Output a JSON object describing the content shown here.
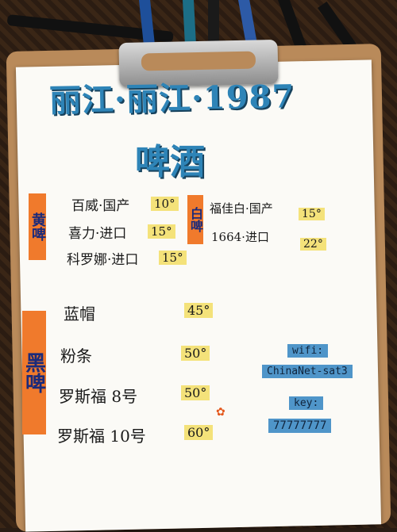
{
  "title": {
    "line1": "丽江·丽江·1987",
    "line2": "啤酒"
  },
  "sections": {
    "yellow_beer_left": {
      "tag": "黄啤",
      "items": [
        {
          "name": "百威·国产",
          "price": "10°"
        },
        {
          "name": "喜力·进口",
          "price": "15°"
        },
        {
          "name": "科罗娜·进口",
          "price": "15°"
        }
      ]
    },
    "white_beer": {
      "tag": "白啤",
      "items": [
        {
          "name": "福佳白·国产",
          "price": "15°"
        },
        {
          "name": "1664·进口",
          "price": "22°"
        }
      ]
    },
    "black_beer": {
      "tag": "黑啤",
      "items": [
        {
          "name": "蓝帽",
          "price": "45°"
        },
        {
          "name": "粉条",
          "price": "50°"
        },
        {
          "name": "罗斯福 8号",
          "price": "50°"
        },
        {
          "name": "罗斯福 10号",
          "price": "60°"
        }
      ]
    }
  },
  "wifi": {
    "label": "wifi:",
    "ssid": "ChinaNet-sat3",
    "key_label": "key:",
    "key": "77777777"
  },
  "colors": {
    "title_blue": "#2e84b7",
    "tag_orange": "#f07a2c",
    "price_yellow": "#f4e27a",
    "wifi_blue": "#4f95c9"
  }
}
